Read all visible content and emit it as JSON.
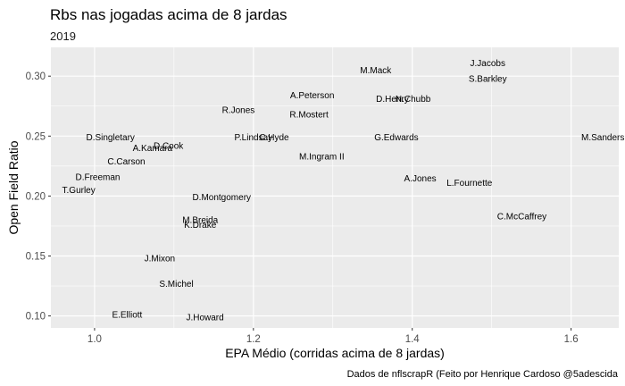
{
  "chart_data": {
    "type": "scatter",
    "title": "Rbs nas jogadas acima de 8 jardas",
    "subtitle": "2019",
    "xlabel": "EPA Médio (corridas acima de 8 jardas)",
    "ylabel": "Open Field Ratio",
    "caption": "Dados de nflscrapR (Feito por Henrique Cardoso @5adescida",
    "xlim": [
      0.945,
      1.66
    ],
    "ylim": [
      0.09,
      0.324
    ],
    "xticks": [
      1.0,
      1.2,
      1.4,
      1.6
    ],
    "xtick_labels": [
      "1.0",
      "1.2",
      "1.4",
      "1.6"
    ],
    "yticks": [
      0.1,
      0.15,
      0.2,
      0.25,
      0.3
    ],
    "ytick_labels": [
      "0.10",
      "0.15",
      "0.20",
      "0.25",
      "0.30"
    ],
    "grid": true,
    "colors": {
      "panel": "#ebebeb",
      "grid": "#ffffff",
      "text": "#000000",
      "tick": "#4d4d4d"
    },
    "points": [
      {
        "label": "J.Jacobs",
        "x": 1.495,
        "y": 0.311
      },
      {
        "label": "M.Mack",
        "x": 1.354,
        "y": 0.305
      },
      {
        "label": "S.Barkley",
        "x": 1.495,
        "y": 0.298
      },
      {
        "label": "A.Peterson",
        "x": 1.274,
        "y": 0.284
      },
      {
        "label": "D.Henry",
        "x": 1.375,
        "y": 0.281
      },
      {
        "label": "N.Chubb",
        "x": 1.401,
        "y": 0.281
      },
      {
        "label": "R.Jones",
        "x": 1.181,
        "y": 0.272
      },
      {
        "label": "R.Mostert",
        "x": 1.27,
        "y": 0.268
      },
      {
        "label": "D.Singletary",
        "x": 1.02,
        "y": 0.249
      },
      {
        "label": "P.Lindsay",
        "x": 1.2,
        "y": 0.249
      },
      {
        "label": "C.Hyde",
        "x": 1.226,
        "y": 0.249
      },
      {
        "label": "G.Edwards",
        "x": 1.38,
        "y": 0.249
      },
      {
        "label": "M.Sanders",
        "x": 1.64,
        "y": 0.249
      },
      {
        "label": "D.Cook",
        "x": 1.093,
        "y": 0.242
      },
      {
        "label": "A.Kamara",
        "x": 1.073,
        "y": 0.24
      },
      {
        "label": "M.Ingram II",
        "x": 1.286,
        "y": 0.233
      },
      {
        "label": "C.Carson",
        "x": 1.04,
        "y": 0.229
      },
      {
        "label": "D.Freeman",
        "x": 1.004,
        "y": 0.216
      },
      {
        "label": "A.Jones",
        "x": 1.41,
        "y": 0.215
      },
      {
        "label": "L.Fournette",
        "x": 1.472,
        "y": 0.211
      },
      {
        "label": "T.Gurley",
        "x": 0.98,
        "y": 0.205
      },
      {
        "label": "D.Montgomery",
        "x": 1.16,
        "y": 0.199
      },
      {
        "label": "C.McCaffrey",
        "x": 1.538,
        "y": 0.183
      },
      {
        "label": "M.Breida",
        "x": 1.133,
        "y": 0.18
      },
      {
        "label": "K.Drake",
        "x": 1.133,
        "y": 0.176
      },
      {
        "label": "J.Mixon",
        "x": 1.082,
        "y": 0.148
      },
      {
        "label": "S.Michel",
        "x": 1.103,
        "y": 0.127
      },
      {
        "label": "E.Elliott",
        "x": 1.041,
        "y": 0.101
      },
      {
        "label": "J.Howard",
        "x": 1.139,
        "y": 0.099
      }
    ]
  }
}
